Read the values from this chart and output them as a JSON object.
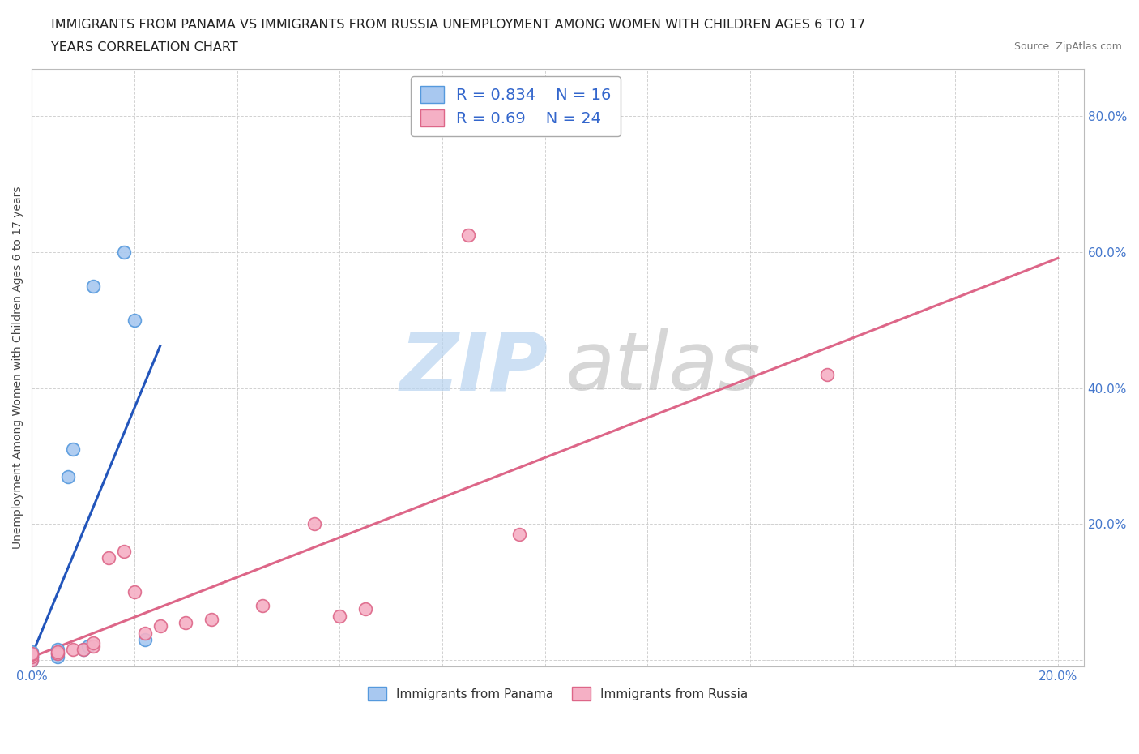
{
  "title_line1": "IMMIGRANTS FROM PANAMA VS IMMIGRANTS FROM RUSSIA UNEMPLOYMENT AMONG WOMEN WITH CHILDREN AGES 6 TO 17",
  "title_line2": "YEARS CORRELATION CHART",
  "source_text": "Source: ZipAtlas.com",
  "ylabel": "Unemployment Among Women with Children Ages 6 to 17 years",
  "xlim": [
    0.0,
    0.205
  ],
  "ylim": [
    -0.01,
    0.87
  ],
  "xticks": [
    0.0,
    0.02,
    0.04,
    0.06,
    0.08,
    0.1,
    0.12,
    0.14,
    0.16,
    0.18,
    0.2
  ],
  "yticks": [
    0.0,
    0.2,
    0.4,
    0.6,
    0.8
  ],
  "panama_color": "#a8c8f0",
  "panama_edge_color": "#5599dd",
  "russia_color": "#f5b0c5",
  "russia_edge_color": "#dd6688",
  "panama_line_color": "#2255bb",
  "russia_line_color": "#dd6688",
  "tick_label_color": "#4477cc",
  "R_panama": 0.834,
  "N_panama": 16,
  "R_russia": 0.69,
  "N_russia": 24,
  "legend_text_color": "#3366cc",
  "panama_x": [
    0.0,
    0.0,
    0.0,
    0.0,
    0.0,
    0.005,
    0.005,
    0.005,
    0.007,
    0.008,
    0.01,
    0.011,
    0.012,
    0.018,
    0.02,
    0.022
  ],
  "panama_y": [
    0.0,
    0.005,
    0.005,
    0.01,
    0.012,
    0.005,
    0.01,
    0.015,
    0.27,
    0.31,
    0.015,
    0.02,
    0.55,
    0.6,
    0.5,
    0.03
  ],
  "russia_x": [
    0.0,
    0.0,
    0.0,
    0.0,
    0.005,
    0.005,
    0.008,
    0.01,
    0.012,
    0.012,
    0.015,
    0.018,
    0.02,
    0.022,
    0.025,
    0.03,
    0.035,
    0.045,
    0.055,
    0.06,
    0.065,
    0.085,
    0.095,
    0.155
  ],
  "russia_y": [
    0.0,
    0.005,
    0.008,
    0.01,
    0.01,
    0.012,
    0.015,
    0.015,
    0.02,
    0.025,
    0.15,
    0.16,
    0.1,
    0.04,
    0.05,
    0.055,
    0.06,
    0.08,
    0.2,
    0.065,
    0.075,
    0.625,
    0.185,
    0.42
  ],
  "background_color": "#ffffff",
  "grid_color": "#cccccc",
  "title_fontsize": 11.5,
  "axis_label_fontsize": 10,
  "tick_fontsize": 11,
  "legend_fontsize": 14
}
